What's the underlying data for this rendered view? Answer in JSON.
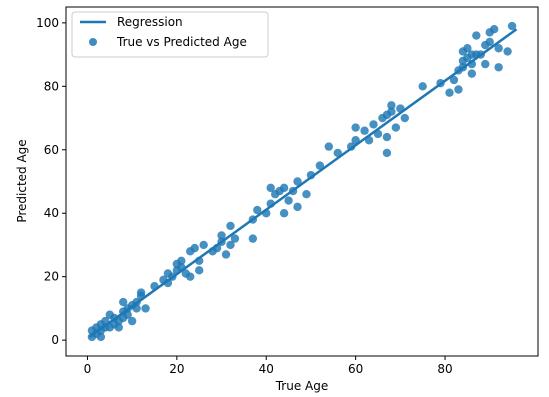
{
  "chart_data": {
    "type": "scatter",
    "xlabel": "True Age",
    "ylabel": "Predicted Age",
    "xlim": [
      -4.8,
      100.8
    ],
    "ylim": [
      -5,
      105
    ],
    "xticks": [
      0,
      20,
      40,
      60,
      80
    ],
    "yticks": [
      0,
      20,
      40,
      60,
      80,
      100
    ],
    "grid": false,
    "legend_position": "upper-left",
    "colors": {
      "series": "#1f77b4",
      "axes": "#000000",
      "legend_border": "#cccccc"
    },
    "series": [
      {
        "name": "Regression",
        "kind": "line",
        "x": [
          0.5,
          96
        ],
        "y": [
          1.0,
          98.0
        ]
      },
      {
        "name": "True vs Predicted Age",
        "kind": "scatter",
        "x": [
          1,
          1,
          2,
          2,
          3,
          3,
          3,
          4,
          4,
          5,
          5,
          6,
          6,
          7,
          7,
          8,
          8,
          8,
          9,
          9,
          10,
          10,
          11,
          11,
          12,
          12,
          13,
          15,
          17,
          18,
          18,
          19,
          20,
          20,
          21,
          21,
          22,
          23,
          23,
          24,
          25,
          25,
          26,
          28,
          29,
          30,
          30,
          31,
          32,
          32,
          33,
          37,
          37,
          38,
          40,
          41,
          41,
          42,
          43,
          44,
          44,
          45,
          46,
          47,
          47,
          49,
          50,
          52,
          54,
          56,
          59,
          60,
          60,
          62,
          63,
          64,
          65,
          66,
          67,
          67,
          67,
          68,
          68,
          69,
          70,
          71,
          75,
          79,
          81,
          82,
          83,
          83,
          84,
          84,
          84,
          85,
          85,
          86,
          86,
          86,
          87,
          87,
          88,
          89,
          89,
          90,
          90,
          91,
          92,
          92,
          94,
          95
        ],
        "y": [
          1,
          3,
          2,
          4,
          3,
          5,
          1,
          4,
          6,
          4,
          8,
          5,
          7,
          6,
          4,
          9,
          12,
          7,
          10,
          8,
          6,
          11,
          12,
          10,
          14,
          15,
          10,
          17,
          19,
          18,
          21,
          20,
          22,
          24,
          23,
          25,
          21,
          20,
          28,
          29,
          22,
          25,
          30,
          28,
          29,
          31,
          33,
          27,
          30,
          36,
          32,
          32,
          38,
          41,
          40,
          43,
          48,
          46,
          47,
          48,
          40,
          44,
          47,
          50,
          42,
          46,
          52,
          55,
          61,
          59,
          61,
          63,
          67,
          66,
          63,
          68,
          65,
          70,
          59,
          64,
          71,
          72,
          74,
          67,
          73,
          70,
          80,
          81,
          78,
          82,
          79,
          85,
          86,
          88,
          91,
          89,
          92,
          87,
          84,
          90,
          90,
          96,
          90,
          93,
          87,
          97,
          94,
          98,
          86,
          92,
          91,
          99
        ]
      }
    ]
  }
}
